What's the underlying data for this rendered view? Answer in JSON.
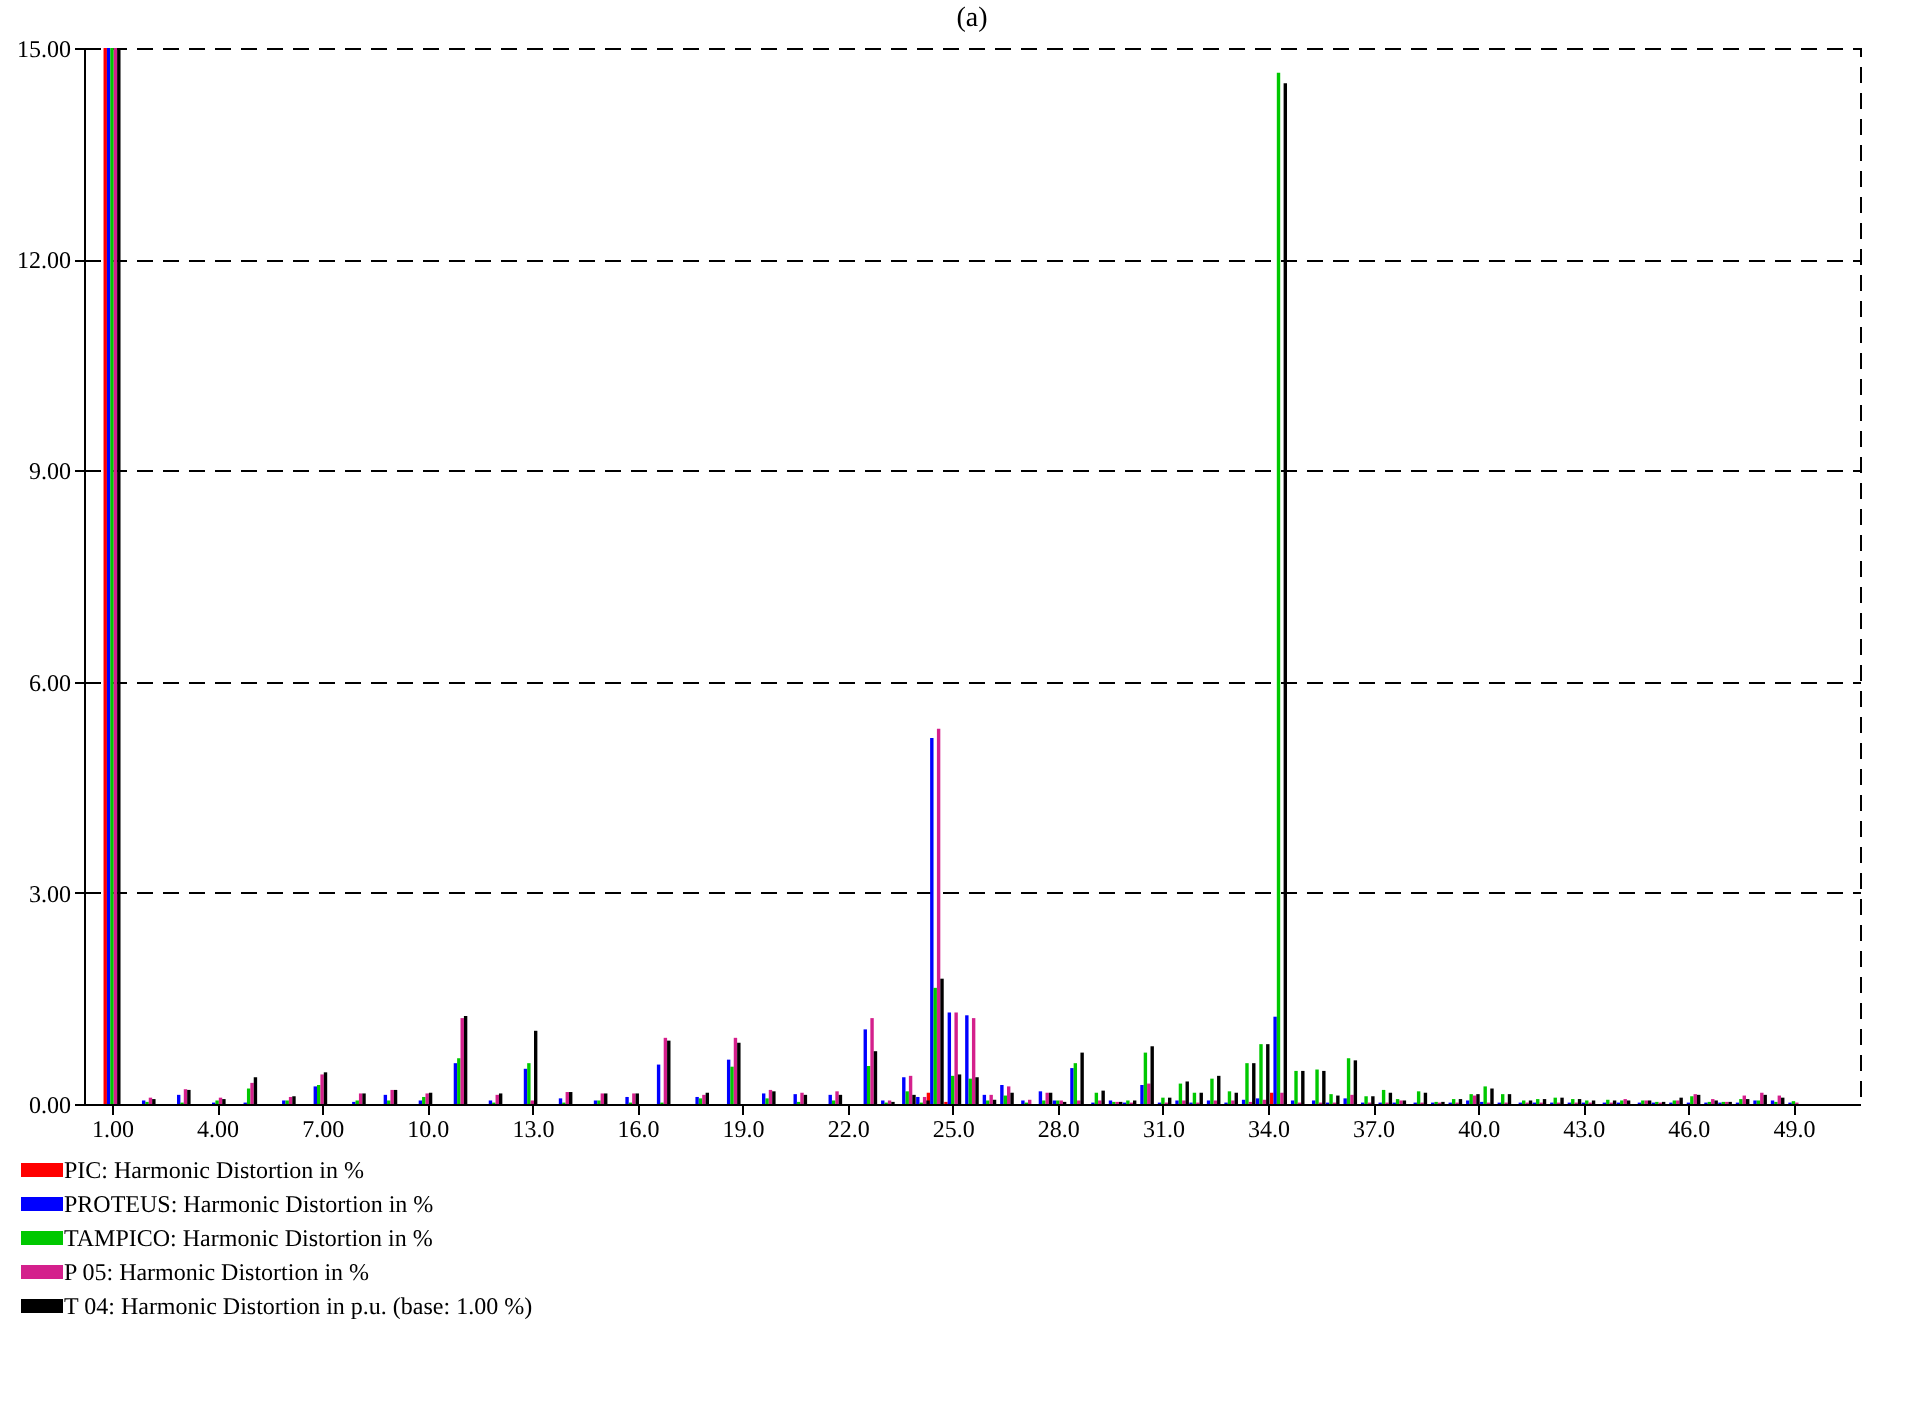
{
  "chart_data": {
    "type": "bar",
    "title": "(a)",
    "x": [
      1.0,
      2.0,
      3.0,
      4.0,
      4.9,
      6.0,
      6.9,
      8.0,
      8.9,
      9.9,
      10.9,
      11.9,
      12.9,
      13.9,
      14.9,
      15.8,
      16.7,
      17.8,
      18.7,
      19.7,
      20.6,
      21.6,
      22.6,
      23.1,
      23.7,
      24.1,
      24.5,
      25.0,
      25.5,
      26.0,
      26.5,
      27.1,
      27.6,
      28.0,
      28.5,
      29.1,
      29.6,
      30.0,
      30.5,
      31.0,
      31.5,
      31.9,
      32.4,
      32.9,
      33.4,
      33.8,
      34.3,
      34.8,
      35.4,
      35.8,
      36.3,
      36.8,
      37.3,
      37.7,
      38.3,
      38.8,
      39.3,
      39.8,
      40.2,
      40.7,
      41.3,
      41.7,
      42.2,
      42.7,
      43.1,
      43.7,
      44.1,
      44.7,
      45.1,
      45.6,
      46.1,
      46.6,
      47.0,
      47.5,
      48.0,
      48.5,
      49.0
    ],
    "series": [
      {
        "name": "PIC: Harmonic Distortion in %",
        "color": "#ff0000",
        "values": [
          15,
          0,
          0,
          0,
          0,
          0,
          0,
          0,
          0,
          0,
          0,
          0,
          0,
          0,
          0,
          0,
          0,
          0,
          0,
          0,
          0,
          0,
          0,
          0,
          0,
          0,
          0.16,
          0.03,
          0,
          0,
          0,
          0,
          0,
          0,
          0,
          0,
          0,
          0,
          0,
          0,
          0,
          0,
          0,
          0,
          0,
          0,
          0.16,
          0,
          0,
          0,
          0,
          0,
          0,
          0,
          0,
          0,
          0,
          0,
          0,
          0,
          0,
          0,
          0,
          0,
          0,
          0,
          0,
          0,
          0,
          0,
          0,
          0,
          0,
          0,
          0,
          0,
          0
        ]
      },
      {
        "name": "PROTEUS: Harmonic Distortion in %",
        "color": "#0000ff",
        "values": [
          15,
          0.05,
          0.13,
          0.02,
          0.02,
          0.05,
          0.25,
          0.03,
          0.13,
          0.05,
          0.58,
          0.05,
          0.5,
          0.08,
          0.05,
          0.1,
          0.56,
          0.1,
          0.63,
          0.15,
          0.14,
          0.13,
          1.06,
          0.05,
          0.38,
          0.1,
          5.2,
          1.3,
          1.26,
          0.13,
          0.27,
          0.05,
          0.18,
          0.05,
          0.51,
          0.02,
          0.05,
          0.02,
          0.27,
          0.02,
          0.05,
          0.02,
          0.05,
          0.02,
          0.06,
          0.08,
          1.24,
          0.05,
          0.05,
          0.02,
          0.08,
          0.02,
          0.02,
          0.02,
          0.02,
          0.02,
          0.02,
          0.05,
          0.03,
          0.02,
          0.02,
          0.02,
          0.02,
          0.02,
          0.02,
          0.02,
          0.02,
          0.02,
          0.02,
          0.02,
          0.02,
          0.02,
          0.02,
          0.02,
          0.05,
          0.05,
          0.02
        ]
      },
      {
        "name": "TAMPICO: Harmonic Distortion in %",
        "color": "#00c800",
        "values": [
          15,
          0.03,
          0.02,
          0.05,
          0.22,
          0.05,
          0.27,
          0.05,
          0.05,
          0.1,
          0.65,
          0.02,
          0.58,
          0.02,
          0.05,
          0.02,
          0.02,
          0.08,
          0.53,
          0.08,
          0.03,
          0.05,
          0.54,
          0.02,
          0.18,
          0.02,
          1.65,
          0.4,
          0.36,
          0.05,
          0.12,
          0.02,
          0.05,
          0.05,
          0.58,
          0.16,
          0.03,
          0.05,
          0.73,
          0.09,
          0.29,
          0.16,
          0.36,
          0.18,
          0.58,
          0.85,
          14.65,
          0.47,
          0.49,
          0.14,
          0.65,
          0.11,
          0.2,
          0.07,
          0.18,
          0.03,
          0.07,
          0.14,
          0.25,
          0.14,
          0.05,
          0.07,
          0.09,
          0.07,
          0.05,
          0.06,
          0.05,
          0.05,
          0.03,
          0.05,
          0.11,
          0.03,
          0.03,
          0.07,
          0.05,
          0.03,
          0.04
        ]
      },
      {
        "name": "P 05: Harmonic Distortion in %",
        "color": "#d4208c",
        "values": [
          15,
          0.09,
          0.21,
          0.09,
          0.3,
          0.1,
          0.42,
          0.15,
          0.2,
          0.15,
          1.22,
          0.13,
          0.05,
          0.17,
          0.15,
          0.15,
          0.94,
          0.13,
          0.94,
          0.2,
          0.16,
          0.18,
          1.22,
          0.05,
          0.4,
          0.1,
          5.33,
          1.3,
          1.22,
          0.13,
          0.25,
          0.06,
          0.16,
          0.05,
          0.05,
          0.05,
          0.03,
          0.02,
          0.29,
          0.02,
          0.05,
          0.02,
          0.05,
          0.05,
          0.03,
          0.06,
          0.16,
          0.02,
          0.02,
          0.02,
          0.13,
          0.02,
          0.02,
          0.05,
          0.02,
          0.02,
          0.02,
          0.12,
          0.02,
          0.02,
          0.02,
          0.02,
          0.02,
          0.02,
          0.02,
          0.02,
          0.07,
          0.05,
          0.02,
          0.05,
          0.14,
          0.07,
          0.03,
          0.12,
          0.16,
          0.12,
          0.02
        ]
      },
      {
        "name": "T 04: Harmonic Distortion in p.u. (base: 1.00 %)",
        "color": "#000000",
        "values": [
          15,
          0.07,
          0.2,
          0.07,
          0.38,
          0.11,
          0.45,
          0.15,
          0.2,
          0.16,
          1.25,
          0.15,
          1.04,
          0.17,
          0.15,
          0.15,
          0.9,
          0.16,
          0.87,
          0.18,
          0.13,
          0.13,
          0.75,
          0.03,
          0.13,
          0.05,
          1.78,
          0.42,
          0.38,
          0.06,
          0.16,
          null,
          0.16,
          0.03,
          0.73,
          0.19,
          0.03,
          0.05,
          0.82,
          0.09,
          0.32,
          0.16,
          0.4,
          0.16,
          0.58,
          0.85,
          14.5,
          0.47,
          0.47,
          0.12,
          0.62,
          0.11,
          0.16,
          0.05,
          0.16,
          0.03,
          0.07,
          0.14,
          0.22,
          0.14,
          0.05,
          0.07,
          0.09,
          0.07,
          0.05,
          0.05,
          0.05,
          0.05,
          0.03,
          0.09,
          0.13,
          0.05,
          0.03,
          0.07,
          0.13,
          0.09,
          null
        ]
      }
    ],
    "xlim": [
      0.2,
      50.9
    ],
    "xticks": [
      {
        "value": 1,
        "label": "1.00"
      },
      {
        "value": 4,
        "label": "4.00"
      },
      {
        "value": 7,
        "label": "7.00"
      },
      {
        "value": 10,
        "label": "10.0"
      },
      {
        "value": 13,
        "label": "13.0"
      },
      {
        "value": 16,
        "label": "16.0"
      },
      {
        "value": 19,
        "label": "19.0"
      },
      {
        "value": 22,
        "label": "22.0"
      },
      {
        "value": 25,
        "label": "25.0"
      },
      {
        "value": 28,
        "label": "28.0"
      },
      {
        "value": 31,
        "label": "31.0"
      },
      {
        "value": 34,
        "label": "34.0"
      },
      {
        "value": 37,
        "label": "37.0"
      },
      {
        "value": 40,
        "label": "40.0"
      },
      {
        "value": 43,
        "label": "43.0"
      },
      {
        "value": 46,
        "label": "46.0"
      },
      {
        "value": 49,
        "label": "49.0"
      }
    ],
    "ylim": [
      0,
      15
    ],
    "yticks": [
      {
        "value": 0,
        "label": "0.00"
      },
      {
        "value": 3,
        "label": "3.00"
      },
      {
        "value": 6,
        "label": "6.00"
      },
      {
        "value": 9,
        "label": "9.00"
      },
      {
        "value": 12,
        "label": "12.00"
      },
      {
        "value": 15,
        "label": "15.00"
      }
    ],
    "grid": "y",
    "legend": "bottom left"
  }
}
